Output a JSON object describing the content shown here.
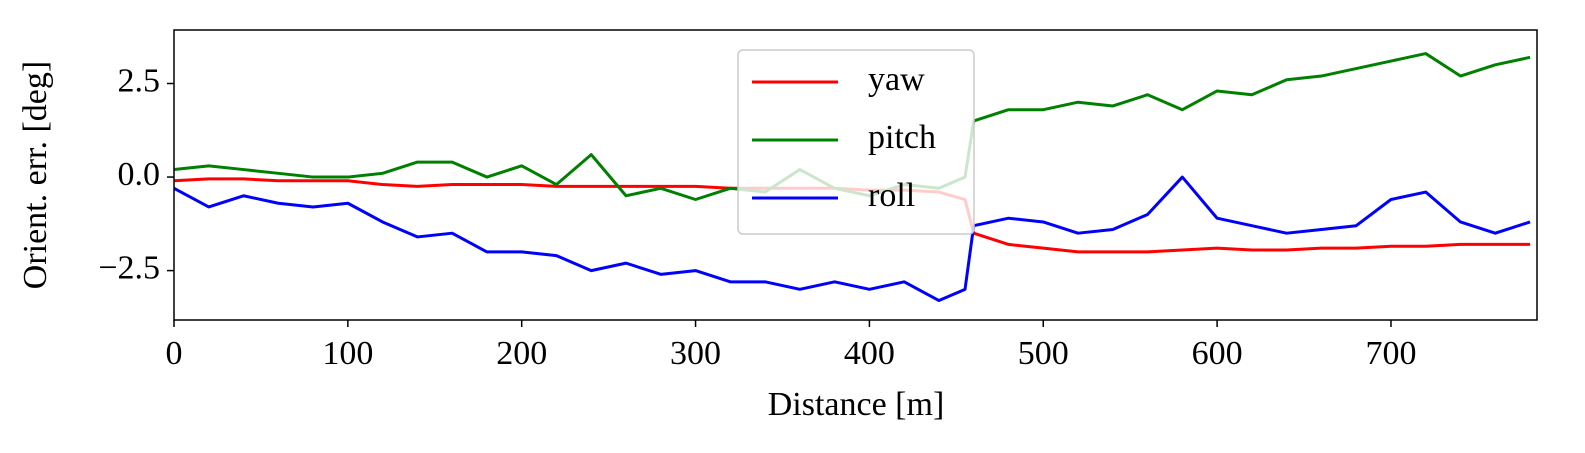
{
  "chart_data": {
    "type": "line",
    "xlabel": "Distance [m]",
    "ylabel": "Orient. err. [deg]",
    "x": [
      0,
      20,
      40,
      60,
      80,
      100,
      120,
      140,
      160,
      180,
      200,
      220,
      240,
      260,
      280,
      300,
      320,
      340,
      360,
      380,
      400,
      420,
      440,
      455,
      460,
      480,
      500,
      520,
      540,
      560,
      580,
      600,
      620,
      640,
      660,
      680,
      700,
      720,
      740,
      760,
      780
    ],
    "series": [
      {
        "name": "yaw",
        "color": "#ff0000",
        "values": [
          -0.1,
          -0.05,
          -0.05,
          -0.1,
          -0.1,
          -0.1,
          -0.2,
          -0.25,
          -0.2,
          -0.2,
          -0.2,
          -0.25,
          -0.25,
          -0.25,
          -0.25,
          -0.25,
          -0.3,
          -0.3,
          -0.3,
          -0.3,
          -0.35,
          -0.35,
          -0.4,
          -0.6,
          -1.5,
          -1.8,
          -1.9,
          -2.0,
          -2.0,
          -2.0,
          -1.95,
          -1.9,
          -1.95,
          -1.95,
          -1.9,
          -1.9,
          -1.85,
          -1.85,
          -1.8,
          -1.8,
          -1.8
        ]
      },
      {
        "name": "pitch",
        "color": "#008000",
        "values": [
          0.2,
          0.3,
          0.2,
          0.1,
          0.0,
          0.0,
          0.1,
          0.4,
          0.4,
          0.0,
          0.3,
          -0.2,
          0.6,
          -0.5,
          -0.3,
          -0.6,
          -0.3,
          -0.4,
          0.2,
          -0.3,
          -0.5,
          -0.2,
          -0.3,
          0.0,
          1.5,
          1.8,
          1.8,
          2.0,
          1.9,
          2.2,
          1.8,
          2.3,
          2.2,
          2.6,
          2.7,
          2.9,
          3.1,
          3.3,
          2.7,
          3.0,
          3.2
        ]
      },
      {
        "name": "roll",
        "color": "#0000ff",
        "values": [
          -0.3,
          -0.8,
          -0.5,
          -0.7,
          -0.8,
          -0.7,
          -1.2,
          -1.6,
          -1.5,
          -2.0,
          -2.0,
          -2.1,
          -2.5,
          -2.3,
          -2.6,
          -2.5,
          -2.8,
          -2.8,
          -3.0,
          -2.8,
          -3.0,
          -2.8,
          -3.3,
          -3.0,
          -1.3,
          -1.1,
          -1.2,
          -1.5,
          -1.4,
          -1.0,
          0.0,
          -1.1,
          -1.3,
          -1.5,
          -1.4,
          -1.3,
          -0.6,
          -0.4,
          -1.2,
          -1.5,
          -1.2
        ]
      }
    ],
    "xlim": [
      0,
      784
    ],
    "xticks": [
      0,
      100,
      200,
      300,
      400,
      500,
      600,
      700
    ],
    "ylim": [
      -3.82,
      3.93
    ],
    "yticks": [
      {
        "value": -2.5,
        "label": "−2.5"
      },
      {
        "value": 0,
        "label": "0.0"
      },
      2.5
    ],
    "legend": "upper center",
    "grid": false
  }
}
